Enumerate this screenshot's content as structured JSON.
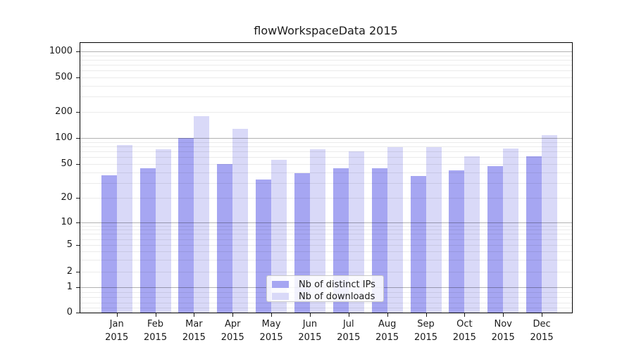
{
  "chart_data": {
    "type": "bar",
    "title": "flowWorkspaceData 2015",
    "categories": [
      "Jan",
      "Feb",
      "Mar",
      "Apr",
      "May",
      "Jun",
      "Jul",
      "Aug",
      "Sep",
      "Oct",
      "Nov",
      "Dec"
    ],
    "year_label": "2015",
    "series": [
      {
        "name": "Nb of distinct IPs",
        "color": "#a6a6f2",
        "values": [
          37,
          45,
          100,
          50,
          33,
          39,
          45,
          45,
          36,
          42,
          47,
          62
        ]
      },
      {
        "name": "Nb of downloads",
        "color": "#d9d9f8",
        "values": [
          83,
          74,
          180,
          127,
          56,
          74,
          70,
          78,
          79,
          62,
          75,
          107
        ]
      }
    ],
    "y_ticks": [
      0,
      1,
      2,
      5,
      10,
      20,
      50,
      100,
      200,
      500,
      1000
    ],
    "y_scale": "log-like with zero baseline",
    "grid": true,
    "legend_position": "lower center",
    "colors": {
      "background": "#ffffff",
      "spine": "#000000",
      "text": "#1a1a1a",
      "major_grid": "rgba(0,0,0,0.30)",
      "minor_grid": "rgba(0,0,0,0.08)"
    }
  }
}
